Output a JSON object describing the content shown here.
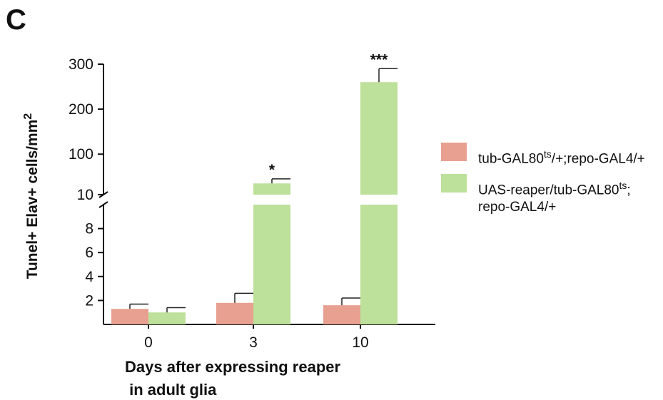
{
  "panel_label": "C",
  "chart_data": {
    "type": "bar",
    "categories": [
      "0",
      "3",
      "10"
    ],
    "series": [
      {
        "name": "tub-GAL80ts/+;repo-GAL4/+",
        "legend_main": "tub-GAL80",
        "legend_sup": "ts",
        "legend_rest": "/+;repo-GAL4/+",
        "color": "#e8a090",
        "values": [
          1.3,
          1.8,
          1.6
        ],
        "errors": [
          0.4,
          0.8,
          0.6
        ]
      },
      {
        "name": "UAS-reaper/tub-GAL80ts;repo-GAL4/+",
        "legend_main": "UAS-reaper/tub-GAL80",
        "legend_sup": "ts",
        "legend_rest": ";",
        "legend_line2": "repo-GAL4/+",
        "color": "#bde09a",
        "values": [
          1.0,
          35,
          260
        ],
        "errors": [
          0.4,
          10,
          30
        ],
        "significance": [
          "",
          "*",
          "***"
        ]
      }
    ],
    "ylabel": "Tunel+ Elav+ cells/mm2",
    "ylabel_main": "Tunel+ Elav+ cells/mm",
    "ylabel_sup": "2",
    "xlabel": "Days after expressing reaper",
    "xlabel_line2": " in adult glia",
    "axis_break": {
      "lower_range": [
        0,
        10
      ],
      "upper_range": [
        10,
        300
      ]
    },
    "lower_ticks": [
      2,
      4,
      6,
      8
    ],
    "upper_ticks": [
      10,
      100,
      200,
      300
    ]
  }
}
